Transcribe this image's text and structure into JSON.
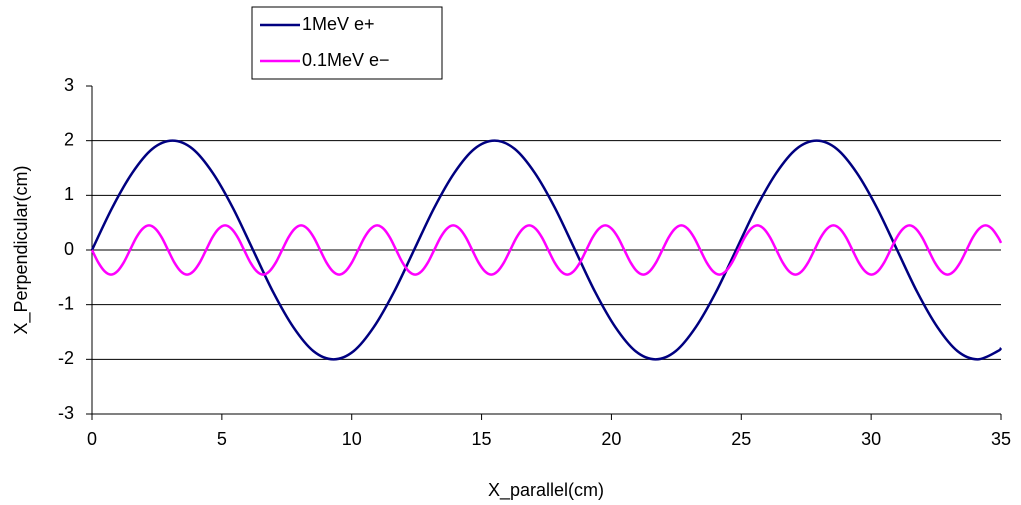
{
  "chart_data": {
    "type": "line",
    "xlabel": "X_parallel(cm)",
    "ylabel": "X_Perpendicular(cm)",
    "xlim": [
      0,
      35
    ],
    "xticks": [
      0,
      5,
      10,
      15,
      20,
      25,
      30,
      35
    ],
    "ylim": [
      -3,
      3
    ],
    "yticks": [
      -3,
      -2,
      -1,
      0,
      1,
      2,
      3
    ],
    "grid": true,
    "legend": "top-left",
    "series": [
      {
        "name": "1MeV e+",
        "color": "#000080",
        "x": [
          0,
          0.775,
          1.55,
          2.325,
          3.1,
          3.875,
          4.65,
          5.425,
          6.2,
          6.975,
          7.75,
          8.525,
          9.3,
          10.075,
          10.85,
          11.625,
          12.4,
          13.175,
          13.95,
          14.725,
          15.5,
          16.275,
          17.05,
          17.825,
          18.6,
          19.375,
          20.15,
          20.925,
          21.7,
          22.475,
          23.25,
          24.025,
          24.8,
          25.575,
          26.35,
          27.125,
          27.9,
          28.675,
          29.45,
          30.225,
          31,
          31.775,
          32.55,
          33.325,
          34.1,
          34.875,
          35
        ],
        "values": [
          0,
          0.77,
          1.41,
          1.85,
          2,
          1.85,
          1.41,
          0.77,
          0,
          -0.77,
          -1.41,
          -1.85,
          -2,
          -1.85,
          -1.41,
          -0.77,
          0,
          0.77,
          1.41,
          1.85,
          2,
          1.85,
          1.41,
          0.77,
          0,
          -0.77,
          -1.41,
          -1.85,
          -2,
          -1.85,
          -1.41,
          -0.77,
          0,
          0.77,
          1.41,
          1.85,
          2,
          1.85,
          1.41,
          0.77,
          0,
          -0.77,
          -1.41,
          -1.85,
          -2,
          -1.85,
          -1.79
        ]
      },
      {
        "name": "0.1MeV e−",
        "color": "#ff00ff",
        "x": [
          0,
          0.244,
          0.488,
          0.732,
          0.976,
          1.22,
          1.464,
          1.708,
          1.952,
          2.196,
          2.44,
          2.684,
          2.928,
          3.172,
          3.416,
          3.66,
          3.904,
          4.148,
          4.392,
          4.636,
          4.88,
          5.124,
          5.368,
          5.612,
          5.856,
          6.1,
          6.344,
          6.588,
          6.832,
          7.076,
          7.32,
          7.564,
          7.808,
          8.052,
          8.296,
          8.54,
          8.784,
          9.028,
          9.272,
          9.516,
          9.76,
          10.004,
          10.248,
          10.492,
          10.736,
          10.98,
          11.224,
          11.468,
          11.712,
          11.956,
          12.2,
          12.444,
          12.688,
          12.932,
          13.176,
          13.42,
          13.664,
          13.908,
          14.152,
          14.396,
          14.64,
          14.884,
          15.128,
          15.372,
          15.616,
          15.86,
          16.104,
          16.348,
          16.592,
          16.836,
          17.08,
          17.324,
          17.568,
          17.812,
          18.056,
          18.3,
          18.544,
          18.788,
          19.032,
          19.276,
          19.52,
          19.764,
          20.008,
          20.252,
          20.496,
          20.74,
          20.984,
          21.228,
          21.472,
          21.716,
          21.96,
          22.204,
          22.448,
          22.692,
          22.936,
          23.18,
          23.424,
          23.668,
          23.912,
          24.156,
          24.4,
          24.644,
          24.888,
          25.132,
          25.376,
          25.62,
          25.864,
          26.108,
          26.352,
          26.596,
          26.84,
          27.084,
          27.328,
          27.572,
          27.816,
          28.06,
          28.304,
          28.548,
          28.792,
          29.036,
          29.28,
          29.524,
          29.768,
          30.012,
          30.256,
          30.5,
          30.744,
          30.988,
          31.232,
          31.476,
          31.72,
          31.964,
          32.208,
          32.452,
          32.696,
          32.94,
          33.184,
          33.428,
          33.672,
          33.916,
          34.16,
          34.404,
          34.648,
          34.892,
          35
        ],
        "values": [
          0,
          -0.23,
          -0.39,
          -0.45,
          -0.39,
          -0.23,
          0,
          0.23,
          0.39,
          0.45,
          0.39,
          0.23,
          0,
          -0.23,
          -0.39,
          -0.45,
          -0.39,
          -0.23,
          0,
          0.23,
          0.39,
          0.45,
          0.39,
          0.23,
          0,
          -0.23,
          -0.39,
          -0.45,
          -0.39,
          -0.23,
          0,
          0.23,
          0.39,
          0.45,
          0.39,
          0.23,
          0,
          -0.23,
          -0.39,
          -0.45,
          -0.39,
          -0.23,
          0,
          0.23,
          0.39,
          0.45,
          0.39,
          0.23,
          0,
          -0.23,
          -0.39,
          -0.45,
          -0.39,
          -0.23,
          0,
          0.23,
          0.39,
          0.45,
          0.39,
          0.23,
          0,
          -0.23,
          -0.39,
          -0.45,
          -0.39,
          -0.23,
          0,
          0.23,
          0.39,
          0.45,
          0.39,
          0.23,
          0,
          -0.23,
          -0.39,
          -0.45,
          -0.39,
          -0.23,
          0,
          0.23,
          0.39,
          0.45,
          0.39,
          0.23,
          0,
          -0.23,
          -0.39,
          -0.45,
          -0.39,
          -0.23,
          0,
          0.23,
          0.39,
          0.45,
          0.39,
          0.23,
          0,
          -0.23,
          -0.39,
          -0.45,
          -0.39,
          -0.23,
          0,
          0.23,
          0.39,
          0.45,
          0.39,
          0.23,
          0,
          -0.23,
          -0.39,
          -0.45,
          -0.39,
          -0.23,
          0,
          0.23,
          0.39,
          0.45,
          0.39,
          0.23,
          0,
          -0.23,
          -0.39,
          -0.45,
          -0.39,
          -0.23,
          0,
          0.23,
          0.39,
          0.45,
          0.39,
          0.23,
          0,
          -0.23,
          -0.39,
          -0.45,
          -0.39,
          -0.23,
          0,
          0.23,
          0.39,
          0.45,
          0.39,
          0.23,
          0.13
        ]
      }
    ]
  }
}
